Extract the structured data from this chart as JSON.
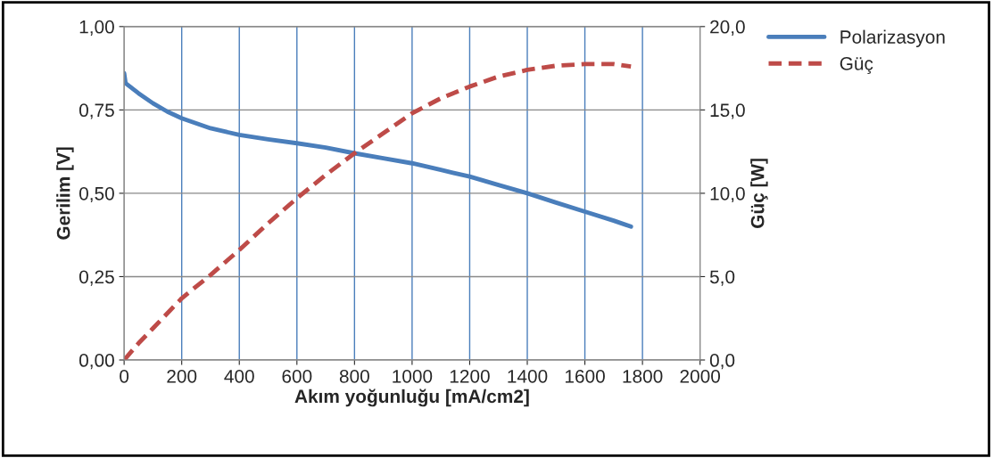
{
  "chart_data": {
    "type": "line",
    "xlabel": "Akım yoğunluğu [mA/cm2]",
    "ylabel": "Gerilim [V]",
    "y2label": "Güç [W]",
    "xlim": [
      0,
      2000
    ],
    "xticks": [
      0,
      200,
      400,
      600,
      800,
      1000,
      1200,
      1400,
      1600,
      1800,
      2000
    ],
    "ylim": [
      0,
      1
    ],
    "yticks": [
      {
        "value": 0,
        "label": "0,00"
      },
      {
        "value": 0.25,
        "label": "0,25"
      },
      {
        "value": 0.5,
        "label": "0,50"
      },
      {
        "value": 0.75,
        "label": "0,75"
      },
      {
        "value": 1,
        "label": "1,00"
      }
    ],
    "y2lim": [
      0,
      20
    ],
    "y2ticks": [
      {
        "value": 0,
        "label": "0,0"
      },
      {
        "value": 5,
        "label": "5,0"
      },
      {
        "value": 10,
        "label": "10,0"
      },
      {
        "value": 15,
        "label": "15,0"
      },
      {
        "value": 20,
        "label": "20,0"
      }
    ],
    "grid": true,
    "legend": "top right",
    "series": [
      {
        "name": "Polarizasyon",
        "color": "#4a7ebb",
        "line_style": "solid",
        "x": [
          0,
          5,
          20,
          50,
          100,
          150,
          200,
          300,
          400,
          500,
          600,
          700,
          800,
          900,
          1000,
          1100,
          1200,
          1300,
          1400,
          1500,
          1600,
          1700,
          1760
        ],
        "values": [
          0.86,
          0.83,
          0.82,
          0.8,
          0.77,
          0.745,
          0.725,
          0.695,
          0.675,
          0.662,
          0.65,
          0.637,
          0.62,
          0.605,
          0.59,
          0.57,
          0.55,
          0.525,
          0.5,
          0.472,
          0.445,
          0.418,
          0.4
        ]
      },
      {
        "name": "Güç",
        "color": "#be4b48",
        "line_style": "dashed",
        "axis": "y2",
        "x": [
          0,
          50,
          100,
          200,
          300,
          400,
          500,
          600,
          700,
          800,
          900,
          1000,
          1100,
          1200,
          1300,
          1400,
          1500,
          1600,
          1700,
          1760
        ],
        "values": [
          0,
          1.0,
          1.9,
          3.7,
          5.1,
          6.6,
          8.2,
          9.7,
          11.1,
          12.4,
          13.6,
          14.8,
          15.7,
          16.4,
          17.0,
          17.4,
          17.65,
          17.75,
          17.75,
          17.6
        ]
      }
    ]
  }
}
